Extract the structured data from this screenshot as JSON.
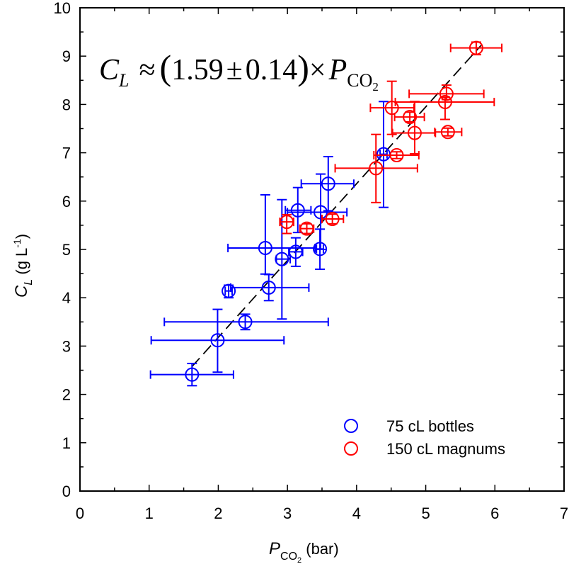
{
  "chart_data": {
    "type": "scatter",
    "title": "",
    "xlabel": {
      "main": "P",
      "sub": "CO",
      "sub2": "2",
      "unit": " (bar)"
    },
    "ylabel": {
      "main": "C",
      "sub": "L",
      "unit": " (g L",
      "sup": "-1",
      "close": ")"
    },
    "xlim": [
      0,
      7
    ],
    "ylim": [
      0,
      10
    ],
    "x_ticks": [
      "0",
      "1",
      "2",
      "3",
      "4",
      "5",
      "6",
      "7"
    ],
    "y_ticks": [
      "0",
      "1",
      "2",
      "3",
      "4",
      "5",
      "6",
      "7",
      "8",
      "9",
      "10"
    ],
    "grid": false,
    "legend_position": "bottom-right",
    "annotation": {
      "lhs": "C",
      "lhs_sub": "L",
      "approx": "≈",
      "open": "(",
      "coef": "1.59",
      "pm": "±",
      "err": "0.14",
      "close": ")",
      "times": "×",
      "rhs": "P",
      "rhs_sub": "CO",
      "rhs_sub2": "2"
    },
    "fit_line": {
      "slope": 1.59,
      "x_range": [
        1.62,
        5.8
      ],
      "style": "dashed",
      "color": "#000000"
    },
    "series": [
      {
        "name": "75 cL bottles",
        "color": "#0000ff",
        "points": [
          {
            "x": 1.62,
            "y": 2.41,
            "xerr": [
              1.02,
              2.22
            ],
            "yerr": [
              2.18,
              2.64
            ]
          },
          {
            "x": 1.99,
            "y": 3.12,
            "xerr": [
              1.03,
              2.95
            ],
            "yerr": [
              2.46,
              3.76
            ]
          },
          {
            "x": 2.39,
            "y": 3.5,
            "xerr": [
              1.22,
              3.59
            ],
            "yerr": [
              3.34,
              3.66
            ]
          },
          {
            "x": 2.15,
            "y": 4.14,
            "xerr": [
              2.1,
              2.2
            ],
            "yerr": [
              4.0,
              4.26
            ]
          },
          {
            "x": 2.73,
            "y": 4.21,
            "xerr": [
              2.18,
              3.31
            ],
            "yerr": [
              3.94,
              4.48
            ]
          },
          {
            "x": 2.68,
            "y": 5.03,
            "xerr": [
              2.14,
              3.4
            ],
            "yerr": [
              4.49,
              6.13
            ]
          },
          {
            "x": 2.92,
            "y": 4.8,
            "xerr": [
              2.84,
              3.04
            ],
            "yerr": [
              3.56,
              6.03
            ]
          },
          {
            "x": 3.12,
            "y": 4.95,
            "xerr": [
              3.02,
              3.22
            ],
            "yerr": [
              4.65,
              5.24
            ]
          },
          {
            "x": 3.47,
            "y": 5.01,
            "xerr": [
              3.42,
              3.52
            ],
            "yerr": [
              4.59,
              5.42
            ]
          },
          {
            "x": 3.15,
            "y": 5.81,
            "xerr": [
              2.97,
              3.34
            ],
            "yerr": [
              5.35,
              6.28
            ]
          },
          {
            "x": 3.48,
            "y": 5.77,
            "xerr": [
              3.0,
              3.86
            ],
            "yerr": [
              5.0,
              6.56
            ]
          },
          {
            "x": 3.59,
            "y": 6.36,
            "xerr": [
              3.2,
              3.96
            ],
            "yerr": [
              5.8,
              6.92
            ]
          },
          {
            "x": 4.39,
            "y": 6.97,
            "xerr": [
              4.34,
              4.44
            ],
            "yerr": [
              5.87,
              8.06
            ]
          }
        ]
      },
      {
        "name": "150 cL magnums",
        "color": "#ff0000",
        "points": [
          {
            "x": 2.99,
            "y": 5.57,
            "xerr": [
              2.89,
              3.09
            ],
            "yerr": [
              5.33,
              5.72
            ]
          },
          {
            "x": 3.28,
            "y": 5.43,
            "xerr": [
              3.18,
              3.38
            ],
            "yerr": [
              5.33,
              5.53
            ]
          },
          {
            "x": 3.65,
            "y": 5.63,
            "xerr": [
              3.5,
              3.81
            ],
            "yerr": [
              5.53,
              5.73
            ]
          },
          {
            "x": 4.28,
            "y": 6.68,
            "xerr": [
              3.69,
              4.88
            ],
            "yerr": [
              5.97,
              7.38
            ]
          },
          {
            "x": 4.58,
            "y": 6.95,
            "xerr": [
              4.25,
              4.9
            ],
            "yerr": [
              6.88,
              7.02
            ]
          },
          {
            "x": 4.51,
            "y": 7.93,
            "xerr": [
              4.2,
              4.83
            ],
            "yerr": [
              7.38,
              8.48
            ]
          },
          {
            "x": 4.77,
            "y": 7.74,
            "xerr": [
              4.55,
              4.98
            ],
            "yerr": [
              7.64,
              7.84
            ]
          },
          {
            "x": 4.84,
            "y": 7.41,
            "xerr": [
              4.52,
              5.14
            ],
            "yerr": [
              6.98,
              8.06
            ]
          },
          {
            "x": 5.32,
            "y": 7.43,
            "xerr": [
              5.13,
              5.52
            ],
            "yerr": [
              7.35,
              7.51
            ]
          },
          {
            "x": 5.3,
            "y": 8.22,
            "xerr": [
              4.76,
              5.84
            ],
            "yerr": [
              8.1,
              8.4
            ]
          },
          {
            "x": 5.28,
            "y": 8.05,
            "xerr": [
              4.56,
              5.99
            ],
            "yerr": [
              7.69,
              8.15
            ]
          },
          {
            "x": 5.73,
            "y": 9.17,
            "xerr": [
              5.36,
              6.1
            ],
            "yerr": [
              9.03,
              9.29
            ]
          }
        ]
      }
    ]
  }
}
